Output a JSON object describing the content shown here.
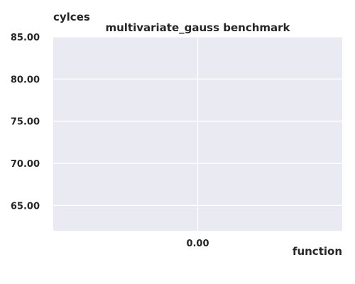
{
  "chart_data": {
    "type": "bar",
    "title": "multivariate_gauss benchmark",
    "xlabel": "function",
    "ylabel": "cylces",
    "xticks": [
      "0.00"
    ],
    "yticks": [
      "65.00",
      "70.00",
      "75.00",
      "80.00",
      "85.00"
    ],
    "ylim": [
      62,
      85
    ],
    "xlim": [
      -0.5,
      0.5
    ],
    "x": [
      0
    ],
    "categories": [],
    "series": [],
    "grid": true,
    "colors": {
      "plot_background": "#eaeaf2",
      "grid": "#ffffff",
      "text": "#262626"
    }
  }
}
